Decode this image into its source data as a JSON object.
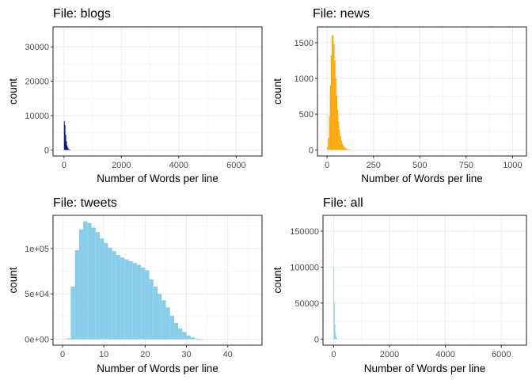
{
  "chart_data": [
    {
      "type": "bar",
      "title": "File: blogs",
      "xlabel": "Number of Words per line",
      "ylabel": "count",
      "bar_color": "#000080",
      "xlim": [
        -380,
        6900
      ],
      "ylim": [
        -1750,
        35800
      ],
      "xticks": [
        {
          "v": 0,
          "label": "0"
        },
        {
          "v": 2000,
          "label": "2000"
        },
        {
          "v": 4000,
          "label": "4000"
        },
        {
          "v": 6000,
          "label": "6000"
        }
      ],
      "yticks": [
        {
          "v": 0,
          "label": "0"
        },
        {
          "v": 10000,
          "label": "10000"
        },
        {
          "v": 20000,
          "label": "20000"
        },
        {
          "v": 30000,
          "label": "30000"
        }
      ],
      "grid": true,
      "series": [
        {
          "values": [
            [
              0,
              25,
              8400
            ],
            [
              25,
              50,
              7200
            ],
            [
              50,
              75,
              4400
            ],
            [
              75,
              100,
              2500
            ],
            [
              100,
              125,
              1300
            ],
            [
              125,
              150,
              700
            ],
            [
              150,
              175,
              350
            ],
            [
              175,
              200,
              180
            ],
            [
              200,
              225,
              90
            ],
            [
              225,
              250,
              40
            ]
          ]
        }
      ]
    },
    {
      "type": "bar",
      "title": "File: news",
      "xlabel": "Number of Words per line",
      "ylabel": "count",
      "bar_color": "#FFA500",
      "xlim": [
        -52,
        1075
      ],
      "ylim": [
        -85,
        1720
      ],
      "xticks": [
        {
          "v": 0,
          "label": "0"
        },
        {
          "v": 250,
          "label": "250"
        },
        {
          "v": 500,
          "label": "500"
        },
        {
          "v": 750,
          "label": "750"
        },
        {
          "v": 1000,
          "label": "1000"
        }
      ],
      "yticks": [
        {
          "v": 0,
          "label": "0"
        },
        {
          "v": 500,
          "label": "500"
        },
        {
          "v": 1000,
          "label": "1000"
        },
        {
          "v": 1500,
          "label": "1500"
        }
      ],
      "grid": true,
      "series": [
        {
          "values": [
            [
              0,
              5,
              40
            ],
            [
              5,
              10,
              170
            ],
            [
              10,
              15,
              470
            ],
            [
              15,
              20,
              900
            ],
            [
              20,
              25,
              1320
            ],
            [
              25,
              30,
              1600
            ],
            [
              30,
              35,
              1610
            ],
            [
              35,
              40,
              1480
            ],
            [
              40,
              45,
              1250
            ],
            [
              45,
              50,
              1000
            ],
            [
              50,
              55,
              760
            ],
            [
              55,
              60,
              560
            ],
            [
              60,
              65,
              400
            ],
            [
              65,
              70,
              280
            ],
            [
              70,
              75,
              190
            ],
            [
              75,
              80,
              130
            ],
            [
              80,
              85,
              90
            ],
            [
              85,
              90,
              60
            ],
            [
              90,
              95,
              40
            ],
            [
              95,
              100,
              28
            ],
            [
              100,
              105,
              20
            ],
            [
              105,
              110,
              14
            ],
            [
              110,
              115,
              10
            ],
            [
              115,
              120,
              7
            ],
            [
              120,
              125,
              5
            ],
            [
              125,
              130,
              4
            ],
            [
              130,
              135,
              3
            ]
          ]
        }
      ]
    },
    {
      "type": "bar",
      "title": "File: tweets",
      "xlabel": "Number of Words per line",
      "ylabel": "count",
      "bar_color": "#87CEEB",
      "xlim": [
        -2.3,
        48.3
      ],
      "ylim": [
        -6500,
        136500
      ],
      "xticks": [
        {
          "v": 0,
          "label": "0"
        },
        {
          "v": 10,
          "label": "10"
        },
        {
          "v": 20,
          "label": "20"
        },
        {
          "v": 30,
          "label": "30"
        },
        {
          "v": 40,
          "label": "40"
        }
      ],
      "yticks": [
        {
          "v": 0,
          "label": "0e+00"
        },
        {
          "v": 50000,
          "label": "5e+04"
        },
        {
          "v": 100000,
          "label": "1e+05"
        }
      ],
      "grid": true,
      "series": [
        {
          "values": [
            [
              1,
              2,
              1000
            ],
            [
              2,
              3,
              58000
            ],
            [
              3,
              4,
              98000
            ],
            [
              4,
              5,
              121000
            ],
            [
              5,
              6,
              130000
            ],
            [
              6,
              7,
              128000
            ],
            [
              7,
              8,
              123000
            ],
            [
              8,
              9,
              118000
            ],
            [
              9,
              10,
              111000
            ],
            [
              10,
              11,
              106000
            ],
            [
              11,
              12,
              101000
            ],
            [
              12,
              13,
              97000
            ],
            [
              13,
              14,
              93000
            ],
            [
              14,
              15,
              90000
            ],
            [
              15,
              16,
              88000
            ],
            [
              16,
              17,
              86000
            ],
            [
              17,
              18,
              84000
            ],
            [
              18,
              19,
              82000
            ],
            [
              19,
              20,
              79000
            ],
            [
              20,
              21,
              76000
            ],
            [
              21,
              22,
              66000
            ],
            [
              22,
              23,
              58000
            ],
            [
              23,
              24,
              50000
            ],
            [
              24,
              25,
              43000
            ],
            [
              25,
              26,
              35000
            ],
            [
              26,
              27,
              26000
            ],
            [
              27,
              28,
              18000
            ],
            [
              28,
              29,
              12000
            ],
            [
              29,
              30,
              8000
            ],
            [
              30,
              31,
              4200
            ],
            [
              31,
              32,
              2000
            ],
            [
              32,
              33,
              800
            ],
            [
              33,
              34,
              300
            ],
            [
              34,
              35,
              100
            ]
          ]
        }
      ]
    },
    {
      "type": "bar",
      "title": "File: all",
      "xlabel": "Number of Words per line",
      "ylabel": "count",
      "bar_color": "#87CEEB",
      "xlim": [
        -380,
        6900
      ],
      "ylim": [
        -8500,
        172000
      ],
      "xticks": [
        {
          "v": 0,
          "label": "0"
        },
        {
          "v": 2000,
          "label": "2000"
        },
        {
          "v": 4000,
          "label": "4000"
        },
        {
          "v": 6000,
          "label": "6000"
        }
      ],
      "yticks": [
        {
          "v": 0,
          "label": "0"
        },
        {
          "v": 50000,
          "label": "50000"
        },
        {
          "v": 100000,
          "label": "100000"
        },
        {
          "v": 150000,
          "label": "150000"
        }
      ],
      "grid": true,
      "series": [
        {
          "values": [
            [
              0,
              20,
              100000
            ],
            [
              20,
              40,
              52000
            ],
            [
              40,
              60,
              21000
            ],
            [
              60,
              80,
              8500
            ],
            [
              80,
              100,
              3500
            ],
            [
              100,
              120,
              1600
            ],
            [
              120,
              140,
              700
            ],
            [
              140,
              160,
              300
            ]
          ]
        }
      ]
    }
  ]
}
